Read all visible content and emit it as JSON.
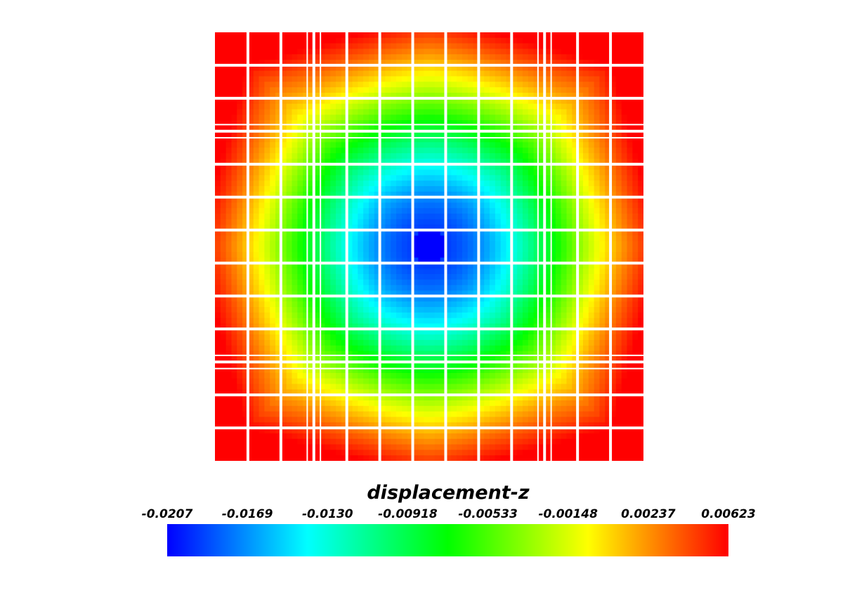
{
  "chart_data": {
    "type": "heatmap",
    "title": "displacement-z",
    "colorbar": {
      "label": "displacement-z",
      "range": [
        -0.0207,
        0.00623
      ],
      "tick_labels": [
        "-0.0207",
        "-0.0169",
        "-0.0130",
        "-0.00918",
        "-0.00533",
        "-0.00148",
        "0.00237",
        "0.00623"
      ],
      "colormap": [
        "#0000ff",
        "#00ffff",
        "#00ff00",
        "#ffff00",
        "#ff0000"
      ]
    },
    "field": {
      "description_min_at": "center",
      "center_value": -0.0207,
      "corner_value": 0.00623
    },
    "mesh": {
      "columns": 13,
      "rows": 13,
      "line_color": "#ffffff"
    }
  }
}
